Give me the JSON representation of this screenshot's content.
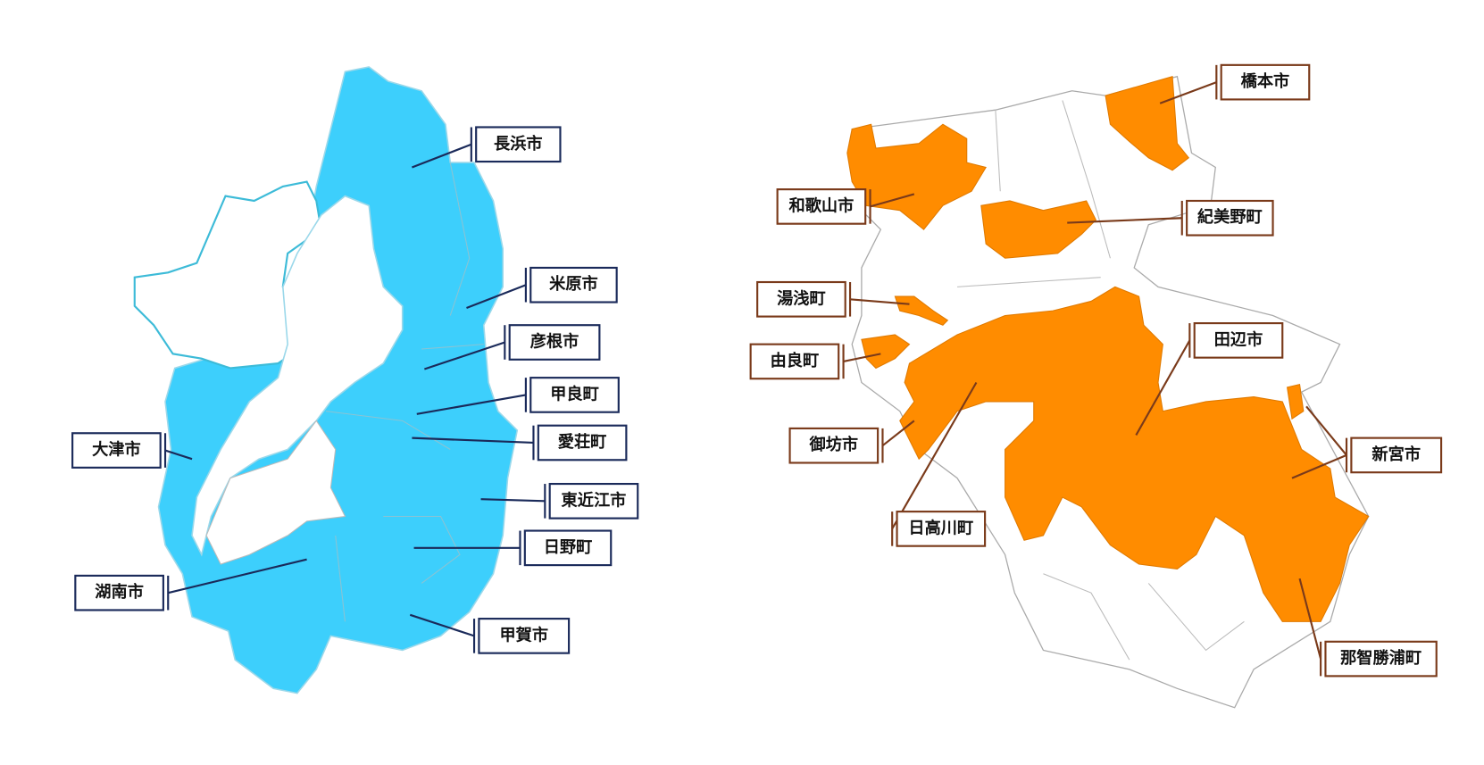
{
  "left_map": {
    "labels": [
      "長浜市",
      "米原市",
      "彦根市",
      "甲良町",
      "愛荘町",
      "東近江市",
      "日野町",
      "甲賀市",
      "大津市",
      "湖南市"
    ]
  },
  "right_map": {
    "labels": [
      "橋本市",
      "和歌山市",
      "紀美野町",
      "湯浅町",
      "由良町",
      "御坊市",
      "日高川町",
      "田辺市",
      "新宮市",
      "那智勝浦町"
    ]
  }
}
